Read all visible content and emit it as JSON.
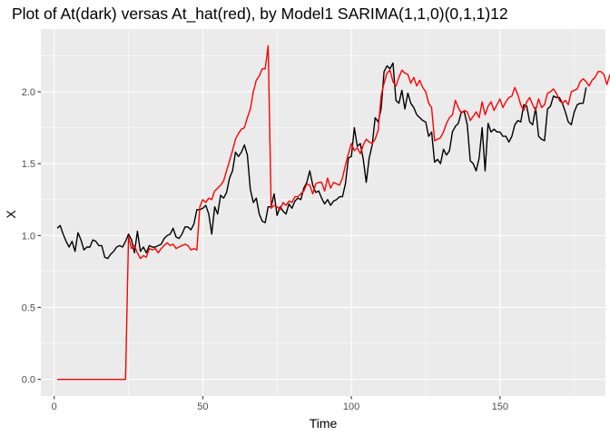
{
  "chart_data": {
    "type": "line",
    "title": "Plot of At(dark) versas At_hat(red), by Model1 SARIMA(1,1,0)(0,1,1)12",
    "xlabel": "Time",
    "ylabel": "X",
    "xlim": [
      -4.5,
      185.5
    ],
    "ylim": [
      -0.116,
      2.436
    ],
    "xticks": [
      0,
      50,
      100,
      150
    ],
    "yticks": [
      0.0,
      0.5,
      1.0,
      1.5,
      2.0
    ],
    "ytick_labels": [
      "0.0",
      "0.5",
      "1.0",
      "1.5",
      "2.0"
    ],
    "grid": true,
    "background": "#EBEBEB",
    "grid_color": "#FFFFFF",
    "series": [
      {
        "color": "#000000",
        "x_start": 1,
        "values": [
          1.05,
          1.07,
          1.01,
          0.96,
          0.92,
          0.96,
          0.89,
          1.02,
          0.97,
          0.9,
          0.92,
          0.92,
          0.97,
          0.96,
          0.93,
          0.93,
          0.85,
          0.84,
          0.87,
          0.89,
          0.92,
          0.93,
          0.92,
          0.96,
          1.01,
          0.97,
          0.88,
          1.03,
          0.89,
          0.92,
          0.88,
          0.93,
          0.92,
          0.92,
          0.93,
          0.94,
          0.98,
          1.0,
          1.01,
          1.05,
          0.99,
          0.98,
          1.01,
          1.06,
          1.06,
          1.04,
          1.08,
          1.18,
          1.18,
          1.19,
          1.21,
          1.15,
          1.01,
          1.2,
          1.15,
          1.28,
          1.26,
          1.3,
          1.4,
          1.45,
          1.58,
          1.55,
          1.58,
          1.63,
          1.56,
          1.32,
          1.23,
          1.26,
          1.15,
          1.1,
          1.09,
          1.2,
          1.2,
          1.29,
          1.14,
          1.2,
          1.17,
          1.15,
          1.22,
          1.19,
          1.24,
          1.26,
          1.25,
          1.33,
          1.37,
          1.45,
          1.35,
          1.3,
          1.31,
          1.26,
          1.22,
          1.25,
          1.21,
          1.24,
          1.25,
          1.27,
          1.27,
          1.36,
          1.54,
          1.55,
          1.75,
          1.62,
          1.64,
          1.53,
          1.37,
          1.54,
          1.63,
          1.82,
          1.79,
          1.88,
          2.14,
          2.18,
          2.16,
          2.2,
          1.94,
          1.92,
          2.01,
          1.88,
          1.99,
          1.92,
          1.89,
          1.84,
          1.82,
          1.8,
          1.79,
          1.69,
          1.72,
          1.51,
          1.53,
          1.5,
          1.6,
          1.56,
          1.59,
          1.72,
          1.76,
          1.78,
          1.86,
          1.86,
          1.77,
          1.52,
          1.5,
          1.45,
          1.54,
          1.75,
          1.45,
          1.78,
          1.72,
          1.74,
          1.72,
          1.72,
          1.69,
          1.69,
          1.65,
          1.69,
          1.77,
          1.8,
          1.79,
          1.91,
          1.9,
          1.79,
          1.77,
          1.89,
          1.69,
          1.67,
          1.66,
          1.88,
          1.9,
          1.97,
          1.96,
          1.96,
          1.92,
          1.86,
          1.79,
          1.77,
          1.86,
          1.91,
          1.92,
          1.92,
          2.03
        ]
      },
      {
        "color": "#FF0000",
        "x_start": 1,
        "values": [
          0.0,
          0.0,
          0.0,
          0.0,
          0.0,
          0.0,
          0.0,
          0.0,
          0.0,
          0.0,
          0.0,
          0.0,
          0.0,
          0.0,
          0.0,
          0.0,
          0.0,
          0.0,
          0.0,
          0.0,
          0.0,
          0.0,
          0.0,
          0.0,
          0.99,
          0.91,
          0.93,
          0.88,
          0.84,
          0.86,
          0.85,
          0.91,
          0.9,
          0.91,
          0.88,
          0.91,
          0.93,
          0.95,
          0.93,
          0.94,
          0.91,
          0.92,
          0.93,
          0.94,
          0.93,
          0.9,
          0.91,
          0.9,
          1.2,
          1.25,
          1.23,
          1.26,
          1.25,
          1.31,
          1.33,
          1.35,
          1.38,
          1.45,
          1.52,
          1.59,
          1.67,
          1.71,
          1.74,
          1.75,
          1.82,
          1.88,
          2.0,
          2.08,
          2.11,
          2.16,
          2.16,
          2.32,
          1.19,
          1.21,
          1.2,
          1.18,
          1.23,
          1.21,
          1.24,
          1.23,
          1.27,
          1.27,
          1.29,
          1.31,
          1.36,
          1.35,
          1.29,
          1.36,
          1.37,
          1.37,
          1.31,
          1.4,
          1.33,
          1.37,
          1.36,
          1.35,
          1.4,
          1.49,
          1.57,
          1.64,
          1.59,
          1.61,
          1.57,
          1.63,
          1.67,
          1.65,
          1.64,
          1.67,
          1.73,
          1.97,
          2.06,
          2.13,
          2.15,
          2.07,
          2.04,
          2.1,
          2.15,
          2.13,
          2.12,
          2.06,
          2.1,
          2.04,
          2.08,
          2.03,
          2.0,
          1.92,
          1.89,
          1.66,
          1.67,
          1.68,
          1.72,
          1.78,
          1.82,
          1.84,
          1.94,
          1.89,
          1.85,
          1.87,
          1.86,
          1.8,
          1.83,
          1.86,
          1.82,
          1.93,
          1.84,
          1.9,
          1.93,
          1.87,
          1.91,
          1.95,
          1.89,
          1.93,
          1.96,
          1.97,
          2.03,
          1.98,
          1.91,
          1.87,
          1.93,
          1.96,
          1.91,
          1.87,
          1.95,
          1.89,
          1.91,
          1.99,
          2.0,
          2.02,
          1.99,
          1.94,
          1.92,
          1.94,
          1.91,
          2.0,
          2.01,
          2.02,
          2.07,
          2.09,
          2.07,
          2.04,
          2.08,
          2.1,
          2.14,
          2.14,
          2.12,
          2.05,
          2.12
        ]
      }
    ]
  }
}
